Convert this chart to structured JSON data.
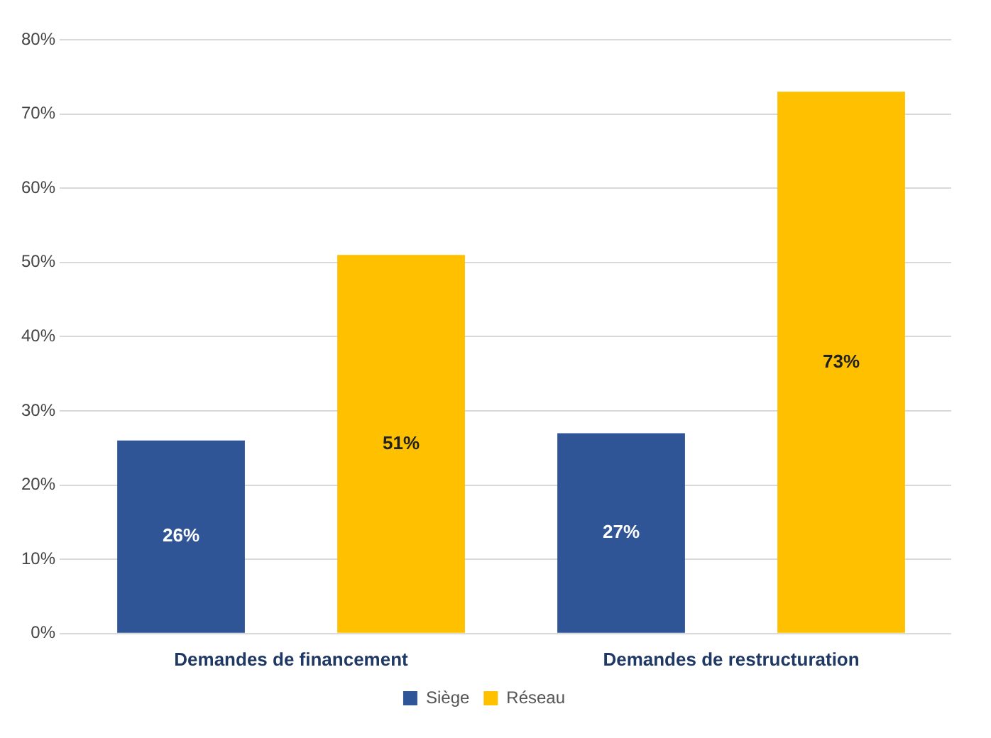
{
  "chart_data": {
    "type": "bar",
    "categories": [
      "Demandes de financement",
      "Demandes de restructuration"
    ],
    "series": [
      {
        "name": "Siège",
        "color": "#2f5597",
        "values": [
          26,
          27
        ],
        "value_labels": [
          "26%",
          "27%"
        ]
      },
      {
        "name": "Réseau",
        "color": "#ffc000",
        "values": [
          51,
          73
        ],
        "value_labels": [
          "51%",
          "73%"
        ]
      }
    ],
    "ylim": [
      0,
      80
    ],
    "yticks": [
      {
        "value": 0,
        "label": "0%"
      },
      {
        "value": 10,
        "label": "10%"
      },
      {
        "value": 20,
        "label": "20%"
      },
      {
        "value": 30,
        "label": "30%"
      },
      {
        "value": 40,
        "label": "40%"
      },
      {
        "value": 50,
        "label": "50%"
      },
      {
        "value": 60,
        "label": "60%"
      },
      {
        "value": 70,
        "label": "70%"
      },
      {
        "value": 80,
        "label": "80%"
      }
    ],
    "grid": "y",
    "legend": "bottom"
  }
}
